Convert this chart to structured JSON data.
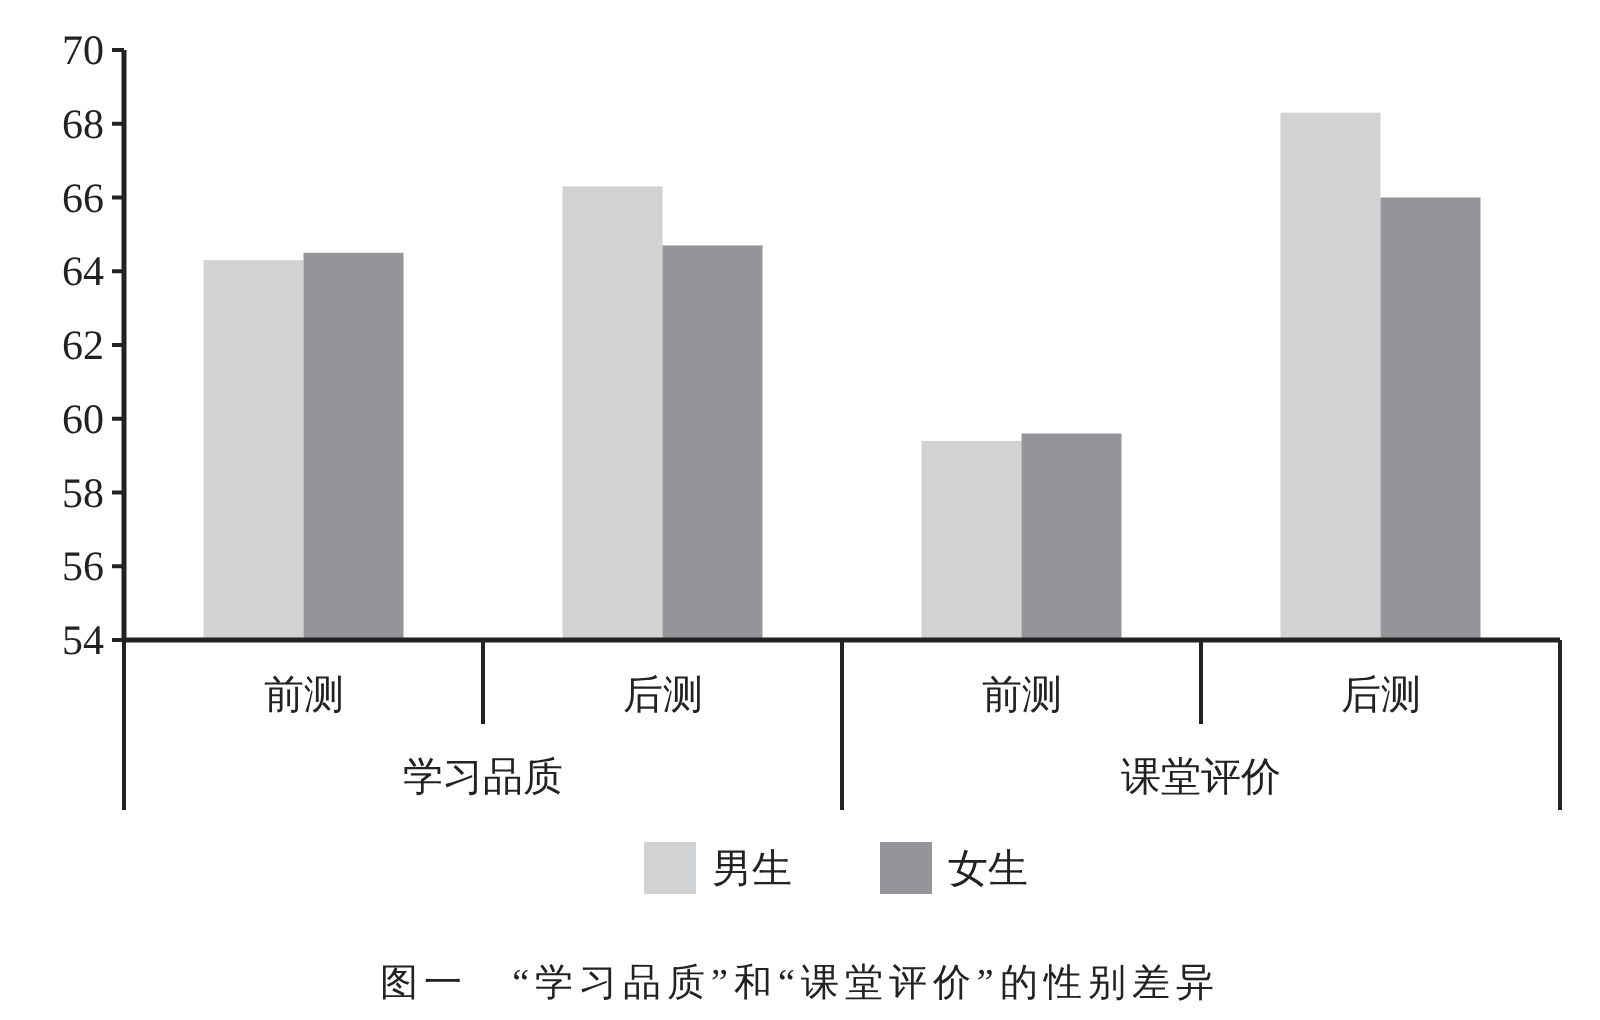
{
  "chart_data": {
    "type": "bar",
    "title": "图一　“学习品质”和“课堂评价”的性别差异",
    "categories": [
      "前测",
      "后测",
      "前测",
      "后测"
    ],
    "series": [
      {
        "name": "男生",
        "color": "#d1d2d4",
        "values": [
          64.3,
          66.3,
          59.4,
          68.3
        ]
      },
      {
        "name": "女生",
        "color": "#949598",
        "values": [
          64.5,
          64.7,
          59.6,
          66.0
        ]
      }
    ],
    "annotations": [
      "学习品质",
      "课堂评价"
    ],
    "ylim": [
      54,
      70
    ],
    "yticks": [
      54,
      56,
      58,
      60,
      62,
      64,
      66,
      68,
      70
    ],
    "grid": false,
    "legend": "bottom"
  }
}
